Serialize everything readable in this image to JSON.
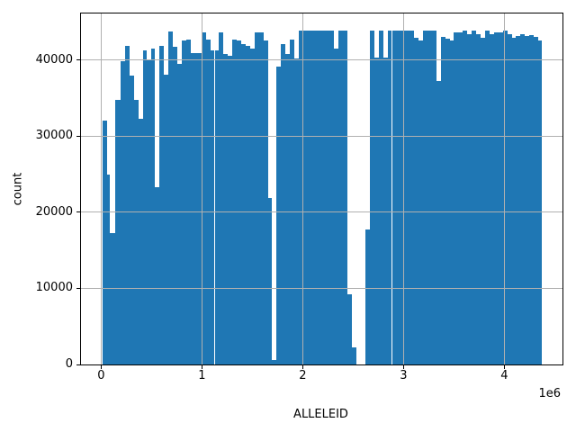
{
  "chart_data": {
    "type": "bar",
    "histogram": true,
    "title": "",
    "xlabel": "ALLELEID",
    "ylabel": "count",
    "x_scale_offset_label": "1e6",
    "x_units_multiplier": 1000000,
    "xlim_e6": [
      -0.2,
      4.577
    ],
    "ylim": [
      0,
      46100
    ],
    "xticks_e6": [
      0,
      1,
      2,
      3,
      4
    ],
    "xtick_labels": [
      "0",
      "1",
      "2",
      "3",
      "4"
    ],
    "yticks": [
      0,
      10000,
      20000,
      30000,
      40000
    ],
    "ytick_labels": [
      "0",
      "10000",
      "20000",
      "30000",
      "40000"
    ],
    "grid": true,
    "grid_over_bars": true,
    "legend": false,
    "bar_color": "#1f77b4",
    "grid_color": "#b0b0b0",
    "spine_color": "#000000",
    "bin_end_e6": 4.37,
    "bins_x0_e6_and_count": [
      [
        0.018,
        32000
      ],
      [
        0.063,
        25000
      ],
      [
        0.085,
        17300
      ],
      [
        0.143,
        34700
      ],
      [
        0.193,
        39800
      ],
      [
        0.237,
        41900
      ],
      [
        0.28,
        38000
      ],
      [
        0.324,
        34800
      ],
      [
        0.368,
        32300
      ],
      [
        0.412,
        41300
      ],
      [
        0.456,
        40000
      ],
      [
        0.5,
        41500
      ],
      [
        0.536,
        23300
      ],
      [
        0.58,
        41900
      ],
      [
        0.624,
        38100
      ],
      [
        0.668,
        43700
      ],
      [
        0.712,
        41700
      ],
      [
        0.756,
        39500
      ],
      [
        0.8,
        42500
      ],
      [
        0.844,
        42700
      ],
      [
        0.888,
        40900
      ],
      [
        0.941,
        40900
      ],
      [
        0.994,
        43650
      ],
      [
        1.038,
        42700
      ],
      [
        1.082,
        41300
      ],
      [
        1.126,
        41300
      ],
      [
        1.17,
        43650
      ],
      [
        1.214,
        40800
      ],
      [
        1.258,
        40500
      ],
      [
        1.302,
        42700
      ],
      [
        1.346,
        42500
      ],
      [
        1.39,
        42100
      ],
      [
        1.434,
        41900
      ],
      [
        1.478,
        41500
      ],
      [
        1.522,
        43650
      ],
      [
        1.566,
        43650
      ],
      [
        1.61,
        42500
      ],
      [
        1.658,
        21900
      ],
      [
        1.697,
        600
      ],
      [
        1.741,
        39100
      ],
      [
        1.785,
        42100
      ],
      [
        1.829,
        40800
      ],
      [
        1.873,
        42700
      ],
      [
        1.917,
        40200
      ],
      [
        1.961,
        43900
      ],
      [
        2.005,
        43900
      ],
      [
        2.049,
        43900
      ],
      [
        2.093,
        43900
      ],
      [
        2.137,
        43900
      ],
      [
        2.181,
        43900
      ],
      [
        2.225,
        43900
      ],
      [
        2.269,
        43900
      ],
      [
        2.313,
        41500
      ],
      [
        2.357,
        43900
      ],
      [
        2.401,
        43900
      ],
      [
        2.445,
        9200
      ],
      [
        2.489,
        2240
      ],
      [
        2.533,
        0
      ],
      [
        2.577,
        0
      ],
      [
        2.621,
        17700
      ],
      [
        2.665,
        43900
      ],
      [
        2.709,
        40300
      ],
      [
        2.753,
        43900
      ],
      [
        2.797,
        40300
      ],
      [
        2.841,
        43900
      ],
      [
        2.885,
        43900
      ],
      [
        2.929,
        43900
      ],
      [
        2.973,
        43900
      ],
      [
        3.017,
        43900
      ],
      [
        3.061,
        43900
      ],
      [
        3.105,
        42850
      ],
      [
        3.149,
        42500
      ],
      [
        3.193,
        43900
      ],
      [
        3.237,
        43900
      ],
      [
        3.281,
        43900
      ],
      [
        3.325,
        37250
      ],
      [
        3.369,
        43000
      ],
      [
        3.413,
        42800
      ],
      [
        3.457,
        42500
      ],
      [
        3.501,
        43650
      ],
      [
        3.545,
        43650
      ],
      [
        3.589,
        43900
      ],
      [
        3.633,
        43400
      ],
      [
        3.677,
        43900
      ],
      [
        3.721,
        43400
      ],
      [
        3.765,
        42850
      ],
      [
        3.809,
        43900
      ],
      [
        3.853,
        43400
      ],
      [
        3.897,
        43650
      ],
      [
        3.941,
        43650
      ],
      [
        3.985,
        43900
      ],
      [
        4.029,
        43400
      ],
      [
        4.073,
        42850
      ],
      [
        4.117,
        43100
      ],
      [
        4.161,
        43400
      ],
      [
        4.205,
        43100
      ],
      [
        4.249,
        43300
      ],
      [
        4.293,
        43000
      ],
      [
        4.337,
        42500
      ]
    ]
  }
}
